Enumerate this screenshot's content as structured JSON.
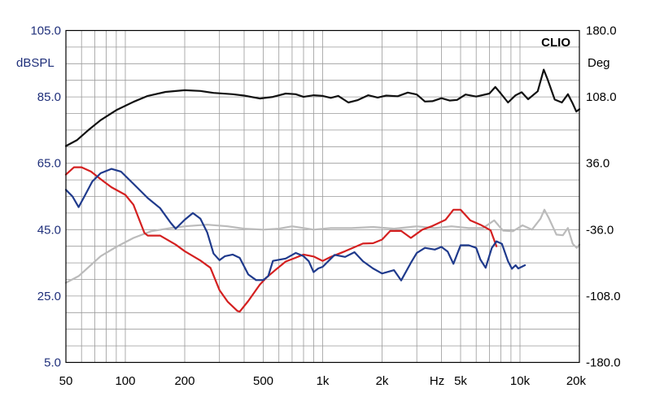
{
  "chart_data": {
    "type": "line",
    "brand": "CLIO",
    "left_axis": {
      "unit_label": "dBSPL",
      "ticks": [
        "105.0",
        "85.0",
        "65.0",
        "45.0",
        "25.0",
        "5.0"
      ],
      "range": [
        5,
        105
      ],
      "color": "#1f2f7a"
    },
    "right_axis": {
      "unit_label": "Deg",
      "ticks": [
        "180.0",
        "108.0",
        "36.0",
        "-36.0",
        "-108.0",
        "-180.0"
      ],
      "range": [
        -180,
        180
      ]
    },
    "x_axis": {
      "scale": "log",
      "range": [
        50,
        20000
      ],
      "ticks": [
        {
          "value": 50,
          "label": "50"
        },
        {
          "value": 100,
          "label": "100"
        },
        {
          "value": 200,
          "label": "200"
        },
        {
          "value": 500,
          "label": "500"
        },
        {
          "value": 1000,
          "label": "1k"
        },
        {
          "value": 2000,
          "label": "2k"
        },
        {
          "value": 3800,
          "label": "Hz"
        },
        {
          "value": 5000,
          "label": "5k"
        },
        {
          "value": 10000,
          "label": "10k"
        },
        {
          "value": 20000,
          "label": "20k"
        }
      ]
    },
    "grid": true,
    "series": [
      {
        "axis": "left",
        "color": "#111111",
        "points": [
          [
            50,
            70.2
          ],
          [
            57,
            72
          ],
          [
            65,
            75
          ],
          [
            75,
            78
          ],
          [
            90,
            81
          ],
          [
            110,
            83.5
          ],
          [
            130,
            85.3
          ],
          [
            160,
            86.5
          ],
          [
            200,
            87
          ],
          [
            240,
            86.8
          ],
          [
            280,
            86.2
          ],
          [
            350,
            85.8
          ],
          [
            400,
            85.4
          ],
          [
            480,
            84.5
          ],
          [
            560,
            85
          ],
          [
            650,
            86
          ],
          [
            730,
            85.8
          ],
          [
            800,
            85
          ],
          [
            900,
            85.5
          ],
          [
            1000,
            85.3
          ],
          [
            1100,
            84.7
          ],
          [
            1200,
            85.3
          ],
          [
            1350,
            83.3
          ],
          [
            1500,
            84
          ],
          [
            1700,
            85.5
          ],
          [
            1900,
            84.8
          ],
          [
            2100,
            85.4
          ],
          [
            2400,
            85.2
          ],
          [
            2700,
            86.3
          ],
          [
            3000,
            85.7
          ],
          [
            3300,
            83.6
          ],
          [
            3600,
            83.7
          ],
          [
            4000,
            84.6
          ],
          [
            4400,
            83.9
          ],
          [
            4800,
            84.1
          ],
          [
            5300,
            85.7
          ],
          [
            6000,
            85.1
          ],
          [
            7000,
            86
          ],
          [
            7500,
            88
          ],
          [
            8000,
            86
          ],
          [
            8700,
            83.3
          ],
          [
            9500,
            85.5
          ],
          [
            10200,
            86.4
          ],
          [
            11000,
            84.3
          ],
          [
            12300,
            86.7
          ],
          [
            13200,
            93.2
          ],
          [
            13800,
            90.3
          ],
          [
            15000,
            84.2
          ],
          [
            16300,
            83.3
          ],
          [
            17500,
            85.8
          ],
          [
            18500,
            83
          ],
          [
            19300,
            80.6
          ],
          [
            20000,
            81.3
          ]
        ]
      },
      {
        "axis": "left",
        "color": "#bbbbbb",
        "points": [
          [
            50,
            29
          ],
          [
            58,
            31
          ],
          [
            66,
            34
          ],
          [
            75,
            37
          ],
          [
            90,
            39.8
          ],
          [
            110,
            42.5
          ],
          [
            135,
            44.5
          ],
          [
            170,
            45.5
          ],
          [
            200,
            46
          ],
          [
            260,
            46.5
          ],
          [
            330,
            46
          ],
          [
            400,
            45.3
          ],
          [
            500,
            45
          ],
          [
            600,
            45.3
          ],
          [
            700,
            46
          ],
          [
            800,
            45.5
          ],
          [
            900,
            45
          ],
          [
            1100,
            45.5
          ],
          [
            1400,
            45.5
          ],
          [
            1800,
            45.8
          ],
          [
            2300,
            45.3
          ],
          [
            3000,
            46
          ],
          [
            3700,
            45.5
          ],
          [
            4500,
            46
          ],
          [
            5500,
            45.5
          ],
          [
            6500,
            45.5
          ],
          [
            7400,
            47.8
          ],
          [
            8200,
            44.7
          ],
          [
            9200,
            44.5
          ],
          [
            10300,
            46.3
          ],
          [
            11500,
            45
          ],
          [
            12700,
            48.3
          ],
          [
            13300,
            51
          ],
          [
            14000,
            48.5
          ],
          [
            15300,
            43.5
          ],
          [
            16500,
            43.3
          ],
          [
            17500,
            45.5
          ],
          [
            18500,
            40.7
          ],
          [
            19400,
            39.5
          ],
          [
            20000,
            40.5
          ]
        ]
      },
      {
        "axis": "left",
        "color": "#d42020",
        "points": [
          [
            50,
            61.6
          ],
          [
            55,
            63.8
          ],
          [
            60,
            63.8
          ],
          [
            67,
            62.5
          ],
          [
            75,
            60.2
          ],
          [
            85,
            57.8
          ],
          [
            100,
            55.5
          ],
          [
            110,
            52.5
          ],
          [
            125,
            44
          ],
          [
            130,
            43.2
          ],
          [
            150,
            43.2
          ],
          [
            180,
            40.5
          ],
          [
            200,
            38.5
          ],
          [
            240,
            35.7
          ],
          [
            270,
            33.5
          ],
          [
            300,
            26.8
          ],
          [
            330,
            23.3
          ],
          [
            370,
            20.5
          ],
          [
            380,
            20.3
          ],
          [
            420,
            23.5
          ],
          [
            480,
            28.4
          ],
          [
            520,
            30.6
          ],
          [
            580,
            33
          ],
          [
            650,
            35.4
          ],
          [
            720,
            36.4
          ],
          [
            800,
            37.5
          ],
          [
            900,
            36.9
          ],
          [
            1000,
            35.6
          ],
          [
            1100,
            36.8
          ],
          [
            1300,
            38.5
          ],
          [
            1600,
            40.8
          ],
          [
            1800,
            40.9
          ],
          [
            2000,
            42
          ],
          [
            2200,
            44.6
          ],
          [
            2500,
            44.6
          ],
          [
            2800,
            42.5
          ],
          [
            3200,
            45
          ],
          [
            3600,
            46.1
          ],
          [
            4200,
            48
          ],
          [
            4600,
            51
          ],
          [
            5000,
            51
          ],
          [
            5600,
            47.8
          ],
          [
            6300,
            46.5
          ],
          [
            7100,
            44.8
          ],
          [
            7600,
            40
          ]
        ]
      },
      {
        "axis": "left",
        "color": "#1f3a8c",
        "points": [
          [
            50,
            57
          ],
          [
            54,
            55
          ],
          [
            58,
            51.8
          ],
          [
            62,
            55
          ],
          [
            68,
            59.5
          ],
          [
            75,
            62
          ],
          [
            85,
            63.3
          ],
          [
            95,
            62.5
          ],
          [
            110,
            58.8
          ],
          [
            130,
            54.5
          ],
          [
            150,
            51.5
          ],
          [
            170,
            47
          ],
          [
            180,
            45.3
          ],
          [
            200,
            48
          ],
          [
            220,
            50
          ],
          [
            240,
            48.3
          ],
          [
            260,
            44.2
          ],
          [
            280,
            37.8
          ],
          [
            300,
            35.8
          ],
          [
            320,
            37
          ],
          [
            350,
            37.5
          ],
          [
            380,
            36.5
          ],
          [
            420,
            31.5
          ],
          [
            460,
            29.8
          ],
          [
            500,
            29.8
          ],
          [
            530,
            31
          ],
          [
            560,
            35.6
          ],
          [
            650,
            36.3
          ],
          [
            730,
            38
          ],
          [
            800,
            37
          ],
          [
            850,
            35.5
          ],
          [
            900,
            32.2
          ],
          [
            950,
            33.3
          ],
          [
            1000,
            33.8
          ],
          [
            1150,
            37.4
          ],
          [
            1300,
            36.8
          ],
          [
            1450,
            38.2
          ],
          [
            1600,
            35.5
          ],
          [
            1800,
            33.3
          ],
          [
            2000,
            31.8
          ],
          [
            2300,
            32.8
          ],
          [
            2500,
            29.7
          ],
          [
            2800,
            35
          ],
          [
            3000,
            38
          ],
          [
            3300,
            39.5
          ],
          [
            3700,
            39
          ],
          [
            4000,
            39.8
          ],
          [
            4300,
            38.4
          ],
          [
            4600,
            34.7
          ],
          [
            5000,
            40.3
          ],
          [
            5500,
            40.3
          ],
          [
            6000,
            39.5
          ],
          [
            6300,
            36
          ],
          [
            6700,
            33.5
          ],
          [
            7200,
            39.5
          ],
          [
            7600,
            41.5
          ],
          [
            8100,
            40.7
          ],
          [
            8700,
            35.5
          ],
          [
            9100,
            33.2
          ],
          [
            9500,
            34.3
          ],
          [
            9800,
            33.3
          ],
          [
            10200,
            33.8
          ],
          [
            10600,
            34.3
          ]
        ]
      }
    ]
  }
}
